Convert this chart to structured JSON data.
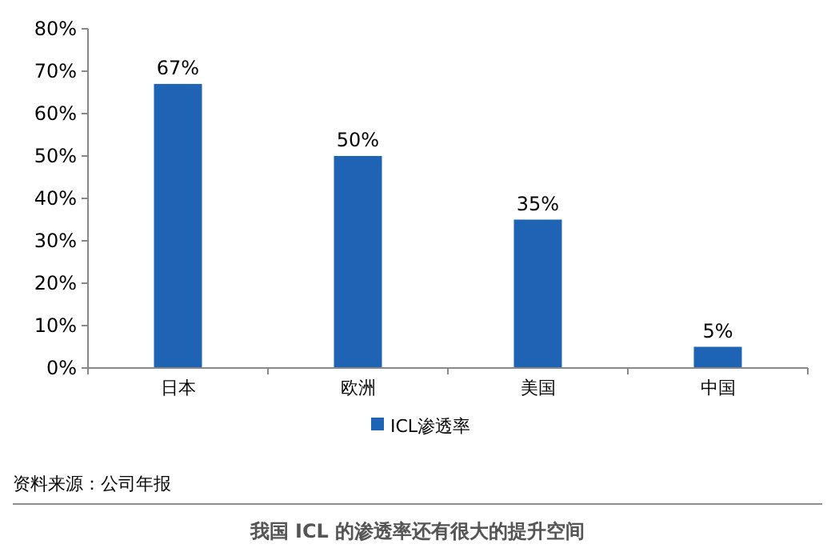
{
  "chart_data": {
    "type": "bar",
    "categories": [
      "日本",
      "欧洲",
      "美国",
      "中国"
    ],
    "series": [
      {
        "name": "ICL渗透率",
        "color": "#1f64b4",
        "values": [
          67,
          50,
          35,
          5
        ]
      }
    ],
    "value_labels": [
      "67%",
      "50%",
      "35%",
      "5%"
    ],
    "ylim": [
      0,
      80
    ],
    "yticks": [
      {
        "value": 0,
        "label": "0%"
      },
      {
        "value": 10,
        "label": "10%"
      },
      {
        "value": 20,
        "label": "20%"
      },
      {
        "value": 30,
        "label": "30%"
      },
      {
        "value": 40,
        "label": "40%"
      },
      {
        "value": 50,
        "label": "50%"
      },
      {
        "value": 60,
        "label": "60%"
      },
      {
        "value": 70,
        "label": "70%"
      },
      {
        "value": 80,
        "label": "80%"
      }
    ],
    "legend": "bottom",
    "grid": false,
    "annotations": [
      "资料来源：公司年报",
      "我国 ICL 的渗透率还有很大的提升空间"
    ]
  }
}
